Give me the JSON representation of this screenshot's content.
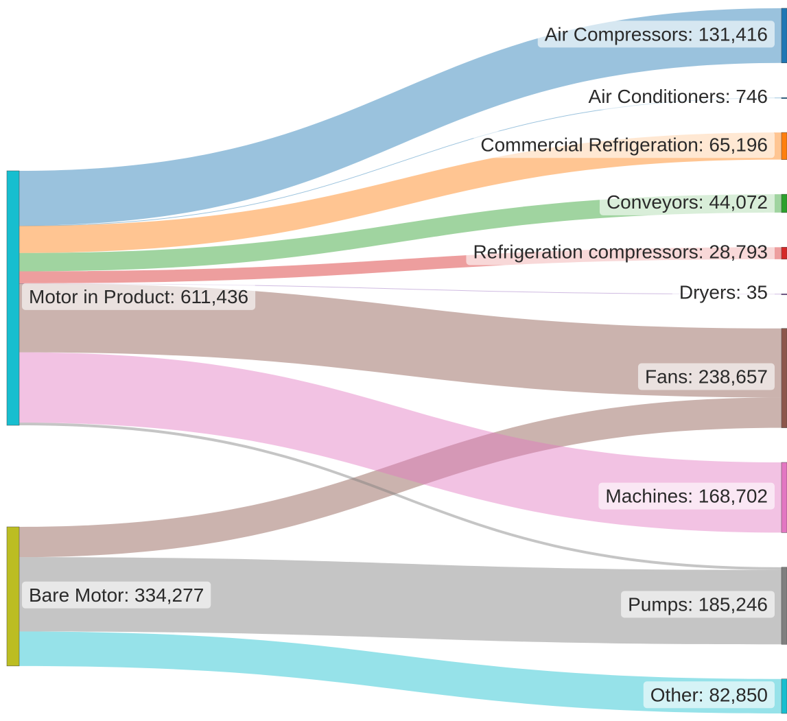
{
  "chart_data": {
    "type": "sankey",
    "nodes": [
      {
        "label": "Motor in Product: 611,436",
        "value": 611436,
        "color": "#17becf"
      },
      {
        "label": "Bare Motor: 334,277",
        "value": 334277,
        "color": "#bcbd22"
      },
      {
        "label": "Air Compressors: 131,416",
        "value": 131416,
        "color": "#1f77b4"
      },
      {
        "label": "Air Conditioners: 746",
        "value": 746,
        "color": "#1f77b4"
      },
      {
        "label": "Commercial Refrigeration: 65,196",
        "value": 65196,
        "color": "#ff7f0e"
      },
      {
        "label": "Conveyors: 44,072",
        "value": 44072,
        "color": "#2ca02c"
      },
      {
        "label": "Refrigeration compressors: 28,793",
        "value": 28793,
        "color": "#d62728"
      },
      {
        "label": "Dryers: 35",
        "value": 35,
        "color": "#9467bd"
      },
      {
        "label": "Fans: 238,657",
        "value": 238657,
        "color": "#8c564b"
      },
      {
        "label": "Machines: 168,702",
        "value": 168702,
        "color": "#e377c2"
      },
      {
        "label": "Pumps: 185,246",
        "value": 185246,
        "color": "#7f7f7f"
      },
      {
        "label": "Other: 82,850",
        "value": 82850,
        "color": "#17becf"
      }
    ],
    "links": [
      {
        "source": 0,
        "target": 2,
        "value": 131416
      },
      {
        "source": 0,
        "target": 3,
        "value": 746
      },
      {
        "source": 0,
        "target": 4,
        "value": 65196
      },
      {
        "source": 0,
        "target": 5,
        "value": 44072
      },
      {
        "source": 0,
        "target": 6,
        "value": 28793
      },
      {
        "source": 0,
        "target": 7,
        "value": 35
      },
      {
        "source": 0,
        "target": 8,
        "value": 165857
      },
      {
        "source": 1,
        "target": 8,
        "value": 72800
      },
      {
        "source": 0,
        "target": 9,
        "value": 168702
      },
      {
        "source": 0,
        "target": 10,
        "value": 6619
      },
      {
        "source": 1,
        "target": 10,
        "value": 178627
      },
      {
        "source": 1,
        "target": 11,
        "value": 82850
      }
    ]
  }
}
